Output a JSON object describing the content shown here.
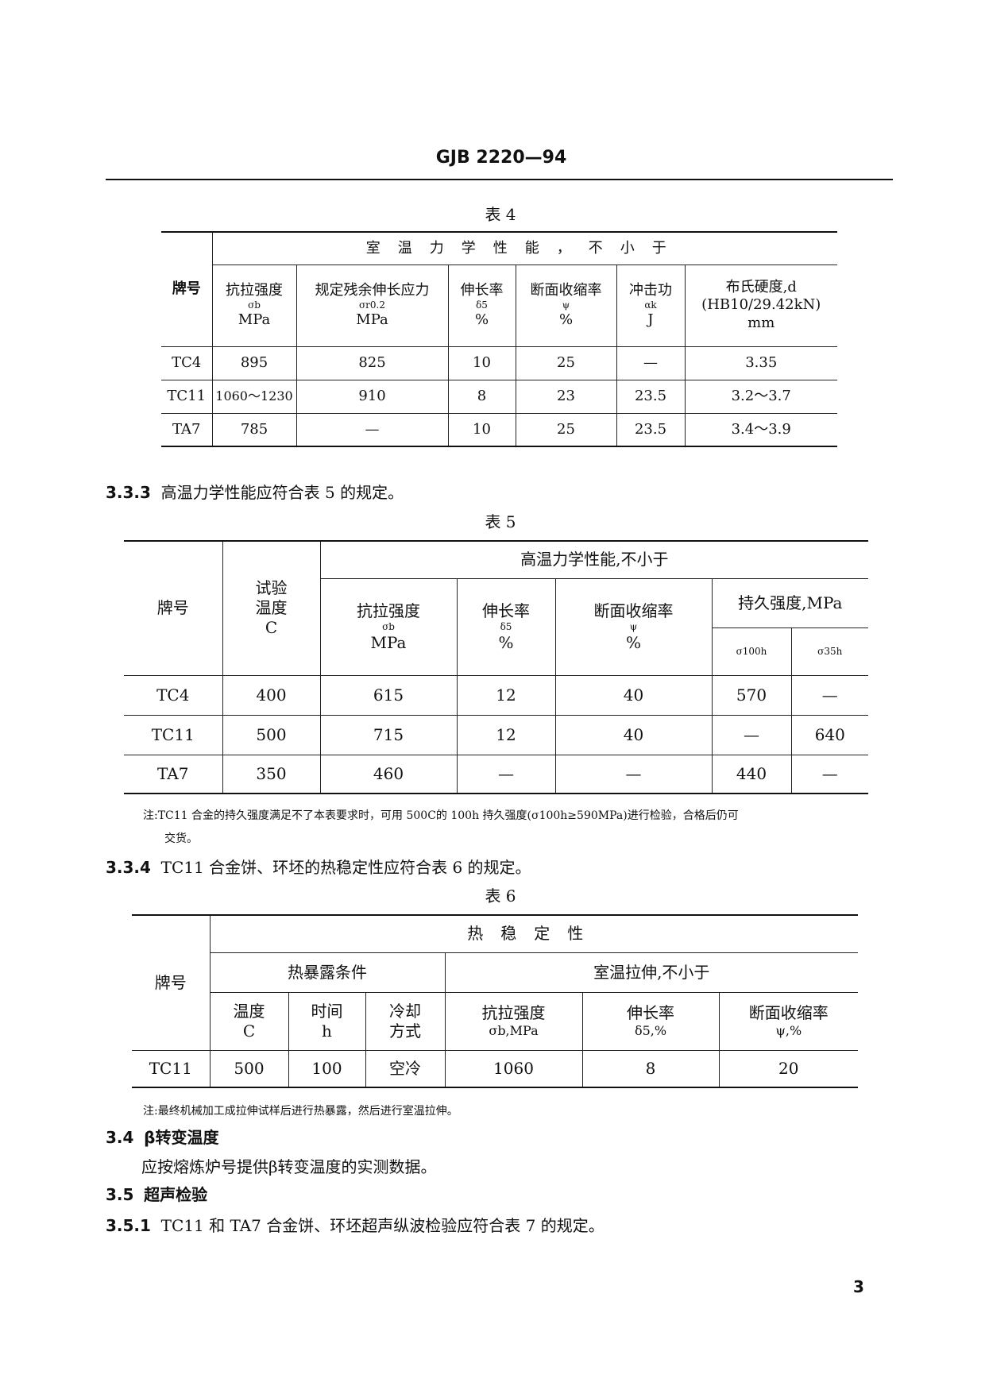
{
  "header": {
    "standard_code": "GJB 2220—94"
  },
  "table4": {
    "caption": "表 4",
    "group_header": "室温力学性能，不小于",
    "grade_header": "牌号",
    "columns": [
      {
        "name": "抗拉强度",
        "symbol": "σb",
        "unit": "MPa"
      },
      {
        "name": "规定残余伸长应力",
        "symbol": "σr0.2",
        "unit": "MPa"
      },
      {
        "name": "伸长率",
        "symbol": "δ5",
        "unit": "%"
      },
      {
        "name": "断面收缩率",
        "symbol": "ψ",
        "unit": "%"
      },
      {
        "name": "冲击功",
        "symbol": "αk",
        "unit": "J"
      },
      {
        "name": "布氏硬度,d",
        "symbol": "(HB10/29.42kN)",
        "unit": "mm"
      }
    ],
    "rows": [
      [
        "TC4",
        "895",
        "825",
        "10",
        "25",
        "—",
        "3.35"
      ],
      [
        "TC11",
        "1060～1230",
        "910",
        "8",
        "23",
        "23.5",
        "3.2～3.7"
      ],
      [
        "TA7",
        "785",
        "—",
        "10",
        "25",
        "23.5",
        "3.4～3.9"
      ]
    ]
  },
  "section_333": {
    "number": "3.3.3",
    "text": "高温力学性能应符合表 5 的规定。"
  },
  "table5": {
    "caption": "表 5",
    "grade_header": "牌号",
    "temp_header": [
      "试验",
      "温度",
      "C"
    ],
    "group_header": "高温力学性能,不小于",
    "columns": [
      {
        "name": "抗拉强度",
        "symbol": "σb",
        "unit": "MPa"
      },
      {
        "name": "伸长率",
        "symbol": "δ5",
        "unit": "%"
      },
      {
        "name": "断面收缩率",
        "symbol": "ψ",
        "unit": "%"
      }
    ],
    "endurance_header": "持久强度,MPa",
    "endurance_cols": [
      "σ100h",
      "σ35h"
    ],
    "rows": [
      [
        "TC4",
        "400",
        "615",
        "12",
        "40",
        "570",
        "—"
      ],
      [
        "TC11",
        "500",
        "715",
        "12",
        "40",
        "—",
        "640"
      ],
      [
        "TA7",
        "350",
        "460",
        "—",
        "—",
        "440",
        "—"
      ]
    ],
    "note_line1": "注:TC11 合金的持久强度满足不了本表要求时，可用 500C的 100h 持久强度(σ100h≥590MPa)进行检验，合格后仍可",
    "note_line2": "交货。"
  },
  "section_334": {
    "number": "3.3.4",
    "text": "TC11 合金饼、环坯的热稳定性应符合表 6 的规定。"
  },
  "table6": {
    "caption": "表 6",
    "grade_header": "牌号",
    "group_header": "热稳定性",
    "exposure_header": "热暴露条件",
    "tensile_header": "室温拉伸,不小于",
    "exposure_cols": [
      [
        "温度",
        "C"
      ],
      [
        "时间",
        "h"
      ],
      [
        "冷却",
        "方式"
      ]
    ],
    "tensile_cols": [
      [
        "抗拉强度",
        "σb,MPa"
      ],
      [
        "伸长率",
        "δ5,%"
      ],
      [
        "断面收缩率",
        "ψ,%"
      ]
    ],
    "rows": [
      [
        "TC11",
        "500",
        "100",
        "空冷",
        "1060",
        "8",
        "20"
      ]
    ],
    "note": "注:最终机械加工成拉伸试样后进行热暴露，然后进行室温拉伸。"
  },
  "section_34": {
    "number": "3.4",
    "title": "β转变温度",
    "text": "应按熔炼炉号提供β转变温度的实测数据。"
  },
  "section_35": {
    "number": "3.5",
    "title": "超声检验"
  },
  "section_351": {
    "number": "3.5.1",
    "text": "TC11 和 TA7 合金饼、环坯超声纵波检验应符合表 7 的规定。"
  },
  "page_number": "3"
}
